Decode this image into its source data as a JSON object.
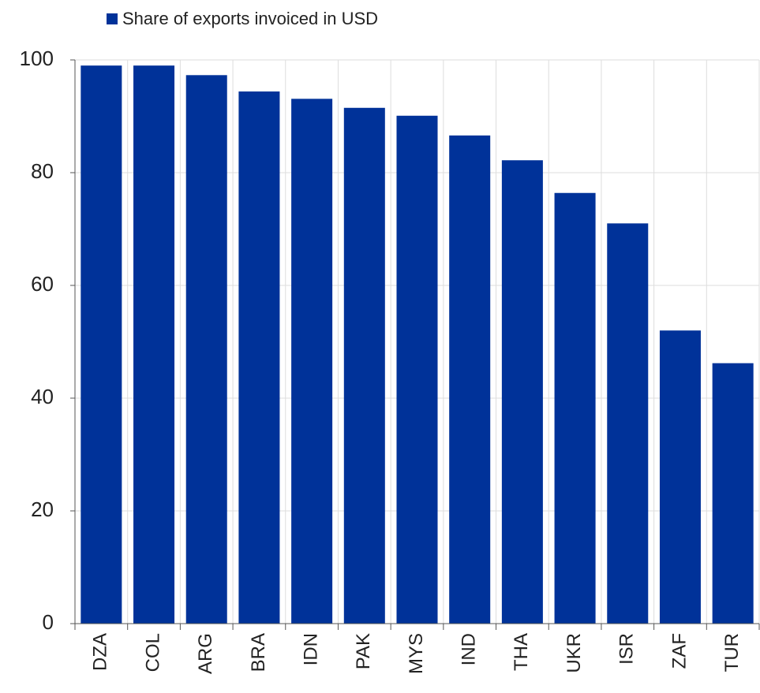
{
  "chart_data": {
    "type": "bar",
    "categories": [
      "DZA",
      "COL",
      "ARG",
      "BRA",
      "IDN",
      "PAK",
      "MYS",
      "IND",
      "THA",
      "UKR",
      "ISR",
      "ZAF",
      "TUR"
    ],
    "series": [
      {
        "name": "Share of exports invoiced in USD",
        "color": "#003299",
        "values": [
          99.0,
          99.0,
          97.3,
          94.4,
          93.1,
          91.5,
          90.1,
          86.6,
          82.2,
          76.4,
          71.0,
          52.0,
          46.2
        ]
      }
    ],
    "ylim": [
      0,
      100
    ],
    "yticks": [
      0,
      20,
      40,
      60,
      80,
      100
    ],
    "grid": true,
    "legend": "top"
  }
}
